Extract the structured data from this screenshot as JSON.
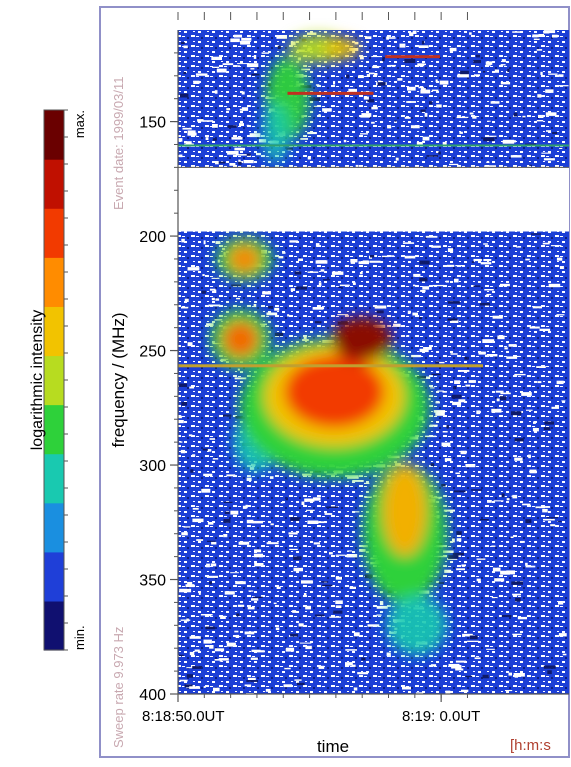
{
  "chart_data": {
    "type": "heatmap",
    "title": "",
    "xlabel": "time",
    "x_unit_label": "[h:m:s",
    "ylabel": "frequency /  (MHz)",
    "y_ticks": [
      "150",
      "200",
      "250",
      "300",
      "350",
      "400"
    ],
    "x_ticks": [
      "8:18:50.0UT",
      "8:19: 0.0UT"
    ],
    "ylim": [
      110,
      400
    ],
    "y_inverted": true,
    "event_date_label": "Event date: 1999/03/11",
    "sweep_rate_label": "Sweep rate 9.973 Hz",
    "colorbar": {
      "label": "logarithmic intensity",
      "max_label": "max.",
      "min_label": "min.",
      "colors": [
        "#101070",
        "#1f3fd8",
        "#1a8fe0",
        "#19c9b0",
        "#2ed13a",
        "#b7dc20",
        "#f2c300",
        "#ff8c00",
        "#f23a00",
        "#c01000",
        "#6a0000"
      ]
    },
    "data_gap_mhz": [
      170,
      198
    ],
    "features": [
      {
        "name": "band-upper",
        "shape": "drift",
        "t_start": 0.2,
        "t_end": 0.45,
        "f_top": 110,
        "f_bottom": 170,
        "peak": "green-yellow"
      },
      {
        "name": "blob-210",
        "t": 0.18,
        "f": 210,
        "peak": "orange"
      },
      {
        "name": "blob-245",
        "t": 0.17,
        "f": 245,
        "peak": "orange"
      },
      {
        "name": "main-burst",
        "t": 0.45,
        "f": 265,
        "peak": "dark red"
      },
      {
        "name": "drift-tail",
        "t_start": 0.5,
        "t_end": 0.62,
        "f_top": 290,
        "f_bottom": 360,
        "peak": "orange"
      }
    ]
  }
}
